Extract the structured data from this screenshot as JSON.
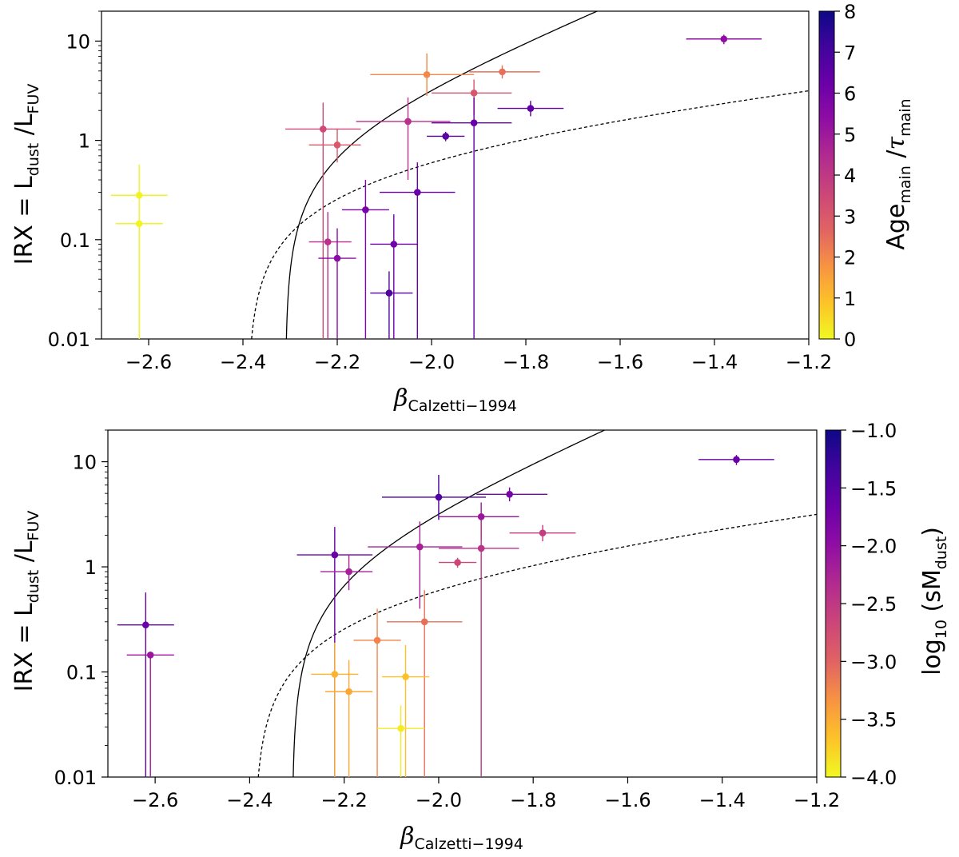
{
  "chart_data": [
    {
      "type": "scatter",
      "title": "",
      "xlabel": {
        "symbol": "β",
        "subscript": "Calzetti−1994"
      },
      "ylabel": {
        "prefix": "IRX = L",
        "sub1": "dust",
        "middle": " /L",
        "sub2": "FUV"
      },
      "xlim": [
        -2.7,
        -1.2
      ],
      "ylim": [
        0.01,
        20
      ],
      "yscale": "log",
      "x_ticks": [
        -2.6,
        -2.4,
        -2.2,
        -2.0,
        -1.8,
        -1.6,
        -1.4,
        -1.2
      ],
      "x_tick_labels": [
        "−2.6",
        "−2.4",
        "−2.2",
        "−2.0",
        "−1.8",
        "−1.6",
        "−1.4",
        "−1.2"
      ],
      "y_ticks": [
        0.01,
        0.1,
        1,
        10
      ],
      "y_tick_labels": [
        "0.01",
        "0.1",
        "1",
        "10"
      ],
      "colorbar": {
        "label": {
          "main1": "Age",
          "sub1": "main",
          "middle": " /",
          "greek": "τ",
          "sub2": "main"
        },
        "colormap": "plasma_r",
        "range": [
          0,
          8
        ],
        "ticks": [
          0,
          1,
          2,
          3,
          4,
          5,
          6,
          7,
          8
        ],
        "tick_labels": [
          "0",
          "1",
          "2",
          "3",
          "4",
          "5",
          "6",
          "7",
          "8"
        ]
      },
      "curves": [
        {
          "name": "solid relation",
          "style": "solid",
          "beta0": -2.31,
          "A": 5.0
        },
        {
          "name": "dashed relation",
          "style": "dashed",
          "beta0": -2.39,
          "A": 1.3
        }
      ],
      "points": [
        {
          "x": -2.62,
          "y": 0.28,
          "xerr": [
            0.06,
            0.06
          ],
          "ylo": 0.001,
          "yhi": 0.57,
          "c": 0.1
        },
        {
          "x": -2.62,
          "y": 0.145,
          "xerr": [
            0.05,
            0.05
          ],
          "ylo": 0.001,
          "yhi": 0.145,
          "c": 0.1
        },
        {
          "x": -2.23,
          "y": 1.3,
          "xerr": [
            0.08,
            0.08
          ],
          "ylo": 0.001,
          "yhi": 2.4,
          "c": 3.9
        },
        {
          "x": -2.2,
          "y": 0.9,
          "xerr": [
            0.06,
            0.05
          ],
          "ylo": 0.6,
          "yhi": 1.3,
          "c": 3.5
        },
        {
          "x": -2.22,
          "y": 0.095,
          "xerr": [
            0.04,
            0.05
          ],
          "ylo": 0.001,
          "yhi": 0.19,
          "c": 4.6
        },
        {
          "x": -2.2,
          "y": 0.065,
          "xerr": [
            0.04,
            0.04
          ],
          "ylo": 0.001,
          "yhi": 0.13,
          "c": 5.7
        },
        {
          "x": -2.01,
          "y": 4.6,
          "xerr": [
            0.12,
            0.1
          ],
          "ylo": 2.8,
          "yhi": 7.5,
          "c": 2.3
        },
        {
          "x": -1.85,
          "y": 4.9,
          "xerr": [
            0.07,
            0.08
          ],
          "ylo": 4.2,
          "yhi": 5.7,
          "c": 2.9
        },
        {
          "x": -1.91,
          "y": 3.0,
          "xerr": [
            0.09,
            0.08
          ],
          "ylo": 1.8,
          "yhi": 4.1,
          "c": 3.6
        },
        {
          "x": -2.05,
          "y": 1.55,
          "xerr": [
            0.11,
            0.09
          ],
          "ylo": 0.4,
          "yhi": 2.7,
          "c": 4.6
        },
        {
          "x": -1.91,
          "y": 1.5,
          "xerr": [
            0.09,
            0.08
          ],
          "ylo": 0.001,
          "yhi": 2.7,
          "c": 6.4
        },
        {
          "x": -1.97,
          "y": 1.1,
          "xerr": [
            0.04,
            0.04
          ],
          "ylo": 0.98,
          "yhi": 1.22,
          "c": 6.7
        },
        {
          "x": -1.79,
          "y": 2.1,
          "xerr": [
            0.07,
            0.07
          ],
          "ylo": 1.75,
          "yhi": 2.5,
          "c": 6.6
        },
        {
          "x": -2.14,
          "y": 0.2,
          "xerr": [
            0.05,
            0.05
          ],
          "ylo": 0.001,
          "yhi": 0.4,
          "c": 6.1
        },
        {
          "x": -2.03,
          "y": 0.3,
          "xerr": [
            0.08,
            0.08
          ],
          "ylo": 0.001,
          "yhi": 0.6,
          "c": 6.4
        },
        {
          "x": -2.08,
          "y": 0.09,
          "xerr": [
            0.05,
            0.05
          ],
          "ylo": 0.001,
          "yhi": 0.18,
          "c": 6.3
        },
        {
          "x": -2.09,
          "y": 0.029,
          "xerr": [
            0.04,
            0.05
          ],
          "ylo": 0.001,
          "yhi": 0.048,
          "c": 6.9
        },
        {
          "x": -1.38,
          "y": 10.5,
          "xerr": [
            0.08,
            0.08
          ],
          "ylo": 9.3,
          "yhi": 11.6,
          "c": 5.6
        }
      ]
    },
    {
      "type": "scatter",
      "title": "",
      "xlabel": {
        "symbol": "β",
        "subscript": "Calzetti−1994"
      },
      "ylabel": {
        "prefix": "IRX = L",
        "sub1": "dust",
        "middle": " /L",
        "sub2": "FUV"
      },
      "xlim": [
        -2.7,
        -1.2
      ],
      "ylim": [
        0.01,
        20
      ],
      "yscale": "log",
      "x_ticks": [
        -2.6,
        -2.4,
        -2.2,
        -2.0,
        -1.8,
        -1.6,
        -1.4,
        -1.2
      ],
      "x_tick_labels": [
        "−2.6",
        "−2.4",
        "−2.2",
        "−2.0",
        "−1.8",
        "−1.6",
        "−1.4",
        "−1.2"
      ],
      "y_ticks": [
        0.01,
        0.1,
        1,
        10
      ],
      "y_tick_labels": [
        "0.01",
        "0.1",
        "1",
        "10"
      ],
      "colorbar": {
        "label": {
          "main1": "log",
          "sub1": "10",
          "middle": " (sM",
          "sub2": "dust",
          "suffix": ")"
        },
        "colormap": "plasma_r",
        "range": [
          -4.0,
          -1.0
        ],
        "ticks": [
          -4.0,
          -3.5,
          -3.0,
          -2.5,
          -2.0,
          -1.5,
          -1.0
        ],
        "tick_labels": [
          "−4.0",
          "−3.5",
          "−3.0",
          "−2.5",
          "−2.0",
          "−1.5",
          "−1.0"
        ]
      },
      "curves": [
        {
          "name": "solid relation",
          "style": "solid",
          "beta0": -2.31,
          "A": 5.0
        },
        {
          "name": "dashed relation",
          "style": "dashed",
          "beta0": -2.39,
          "A": 1.3
        }
      ],
      "points": [
        {
          "x": -2.62,
          "y": 0.28,
          "xerr": [
            0.06,
            0.06
          ],
          "ylo": 0.001,
          "yhi": 0.57,
          "c": -1.6
        },
        {
          "x": -2.61,
          "y": 0.145,
          "xerr": [
            0.05,
            0.05
          ],
          "ylo": 0.001,
          "yhi": 0.145,
          "c": -2.0
        },
        {
          "x": -2.22,
          "y": 1.3,
          "xerr": [
            0.08,
            0.08
          ],
          "ylo": 0.001,
          "yhi": 2.4,
          "c": -1.6
        },
        {
          "x": -2.19,
          "y": 0.9,
          "xerr": [
            0.06,
            0.05
          ],
          "ylo": 0.6,
          "yhi": 1.3,
          "c": -2.1
        },
        {
          "x": -2.0,
          "y": 4.6,
          "xerr": [
            0.12,
            0.1
          ],
          "ylo": 2.8,
          "yhi": 7.5,
          "c": -1.4
        },
        {
          "x": -1.85,
          "y": 4.9,
          "xerr": [
            0.07,
            0.08
          ],
          "ylo": 4.2,
          "yhi": 5.7,
          "c": -1.7
        },
        {
          "x": -1.91,
          "y": 3.0,
          "xerr": [
            0.09,
            0.08
          ],
          "ylo": 1.8,
          "yhi": 4.1,
          "c": -2.0
        },
        {
          "x": -2.04,
          "y": 1.55,
          "xerr": [
            0.11,
            0.09
          ],
          "ylo": 0.4,
          "yhi": 2.7,
          "c": -2.1
        },
        {
          "x": -1.91,
          "y": 1.5,
          "xerr": [
            0.09,
            0.08
          ],
          "ylo": 0.001,
          "yhi": 2.7,
          "c": -2.3
        },
        {
          "x": -1.96,
          "y": 1.1,
          "xerr": [
            0.04,
            0.04
          ],
          "ylo": 0.98,
          "yhi": 1.22,
          "c": -2.5
        },
        {
          "x": -1.78,
          "y": 2.1,
          "xerr": [
            0.07,
            0.07
          ],
          "ylo": 1.75,
          "yhi": 2.5,
          "c": -2.4
        },
        {
          "x": -2.13,
          "y": 0.2,
          "xerr": [
            0.05,
            0.05
          ],
          "ylo": 0.001,
          "yhi": 0.4,
          "c": -3.1
        },
        {
          "x": -2.03,
          "y": 0.3,
          "xerr": [
            0.08,
            0.08
          ],
          "ylo": 0.001,
          "yhi": 0.6,
          "c": -2.9
        },
        {
          "x": -2.22,
          "y": 0.095,
          "xerr": [
            0.05,
            0.05
          ],
          "ylo": 0.001,
          "yhi": 0.19,
          "c": -3.5
        },
        {
          "x": -2.19,
          "y": 0.065,
          "xerr": [
            0.05,
            0.05
          ],
          "ylo": 0.001,
          "yhi": 0.13,
          "c": -3.4
        },
        {
          "x": -2.07,
          "y": 0.09,
          "xerr": [
            0.05,
            0.05
          ],
          "ylo": 0.001,
          "yhi": 0.18,
          "c": -3.6
        },
        {
          "x": -2.08,
          "y": 0.029,
          "xerr": [
            0.05,
            0.05
          ],
          "ylo": 0.001,
          "yhi": 0.048,
          "c": -3.9
        },
        {
          "x": -1.37,
          "y": 10.5,
          "xerr": [
            0.08,
            0.08
          ],
          "ylo": 9.3,
          "yhi": 11.6,
          "c": -1.6
        }
      ]
    }
  ]
}
